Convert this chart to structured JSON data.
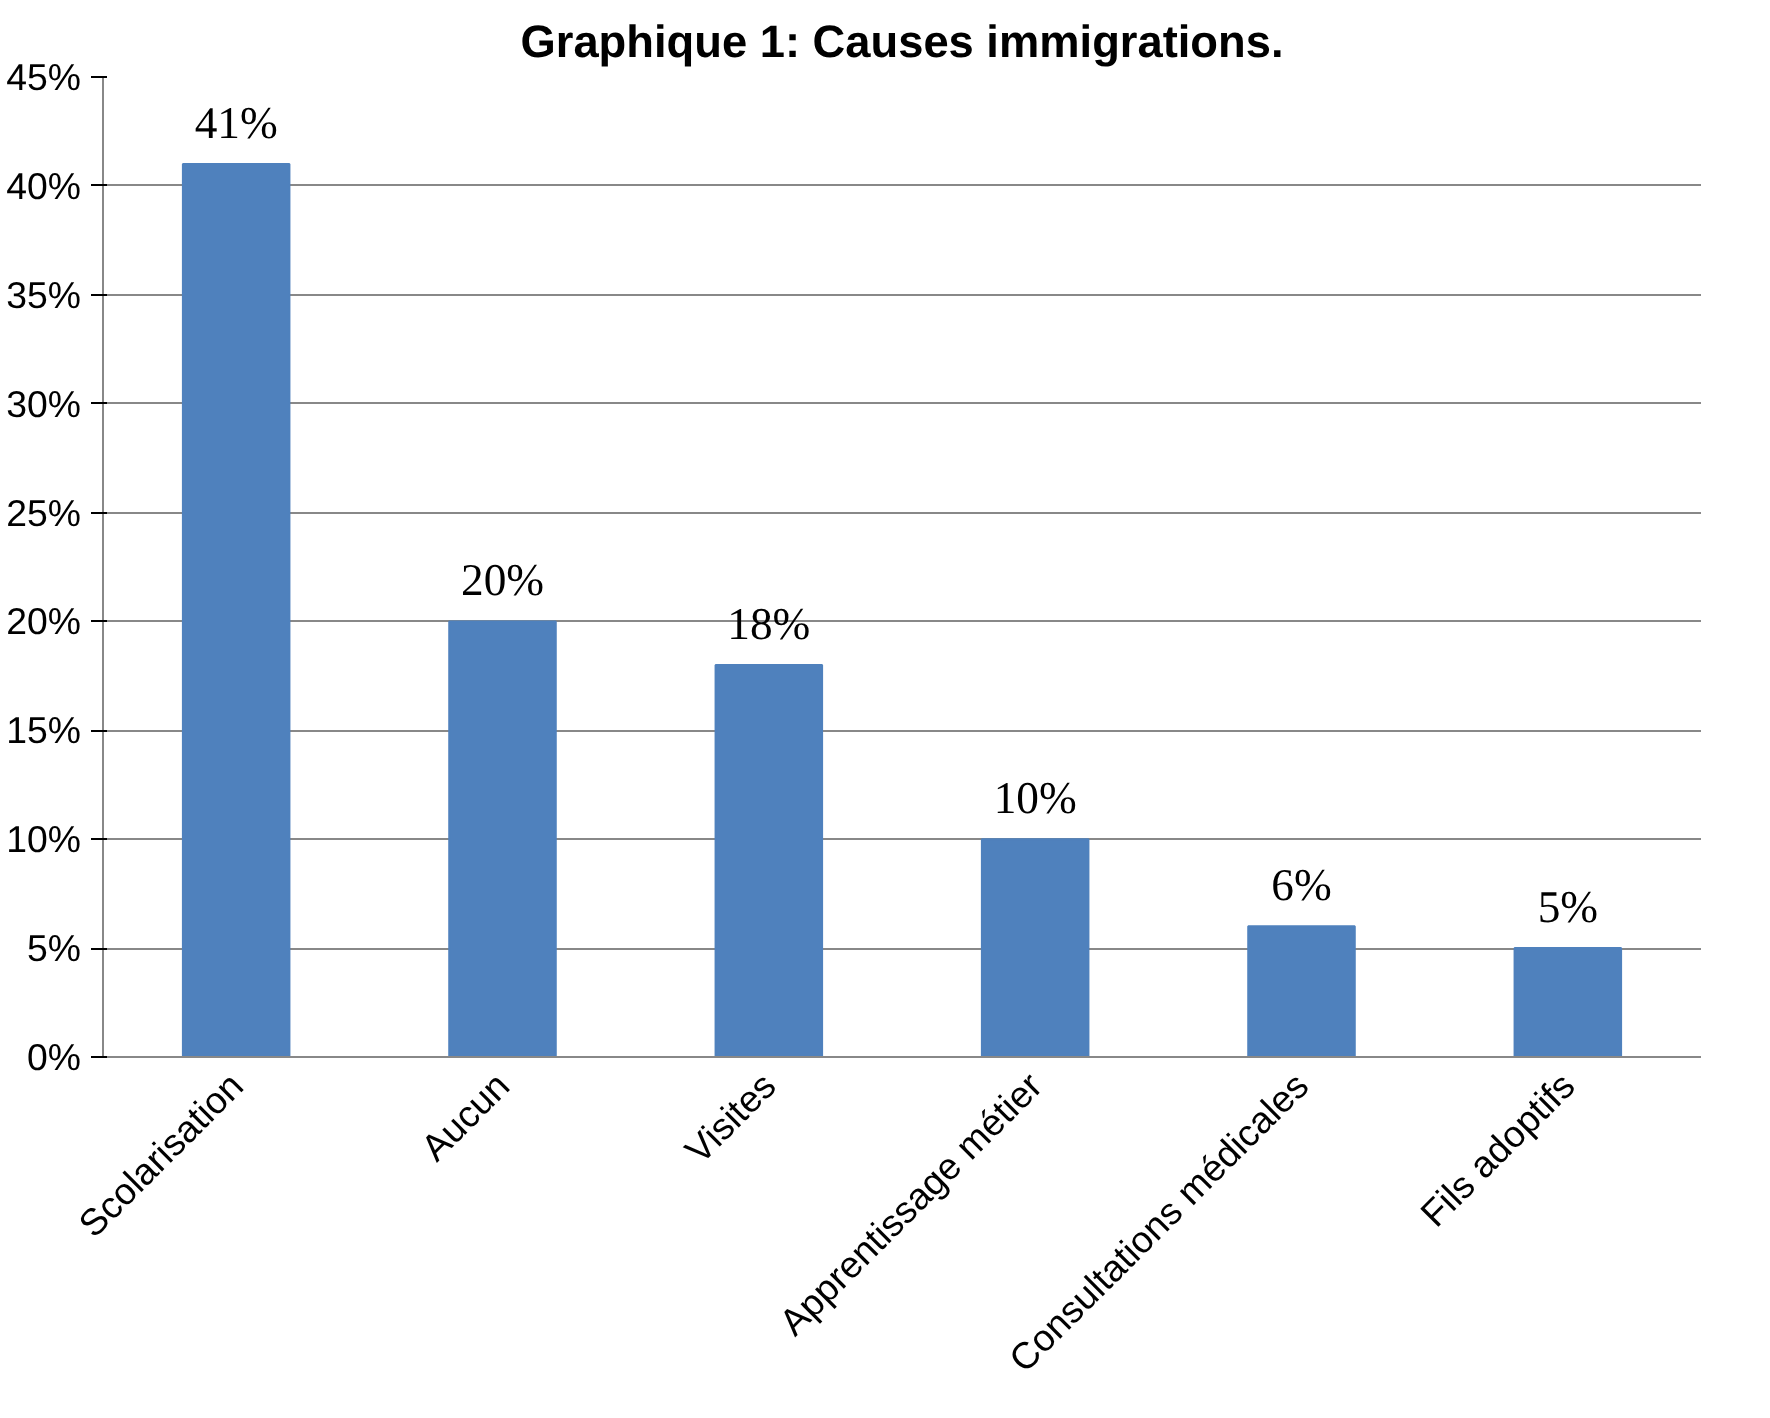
{
  "chart_data": {
    "type": "bar",
    "title": "Graphique 1: Causes immigrations.",
    "categories": [
      "Scolarisation",
      "Aucun",
      "Visites",
      "Apprentissage métier",
      "Consultations médicales",
      "Fils adoptifs"
    ],
    "values": [
      41,
      20,
      18,
      10,
      6,
      5
    ],
    "value_labels": [
      "41%",
      "20%",
      "18%",
      "10%",
      "6%",
      "5%"
    ],
    "color": "#4f81bd",
    "ylim": [
      0,
      45
    ],
    "yticks": [
      {
        "value": 0,
        "label": "0%"
      },
      {
        "value": 5,
        "label": "5%"
      },
      {
        "value": 10,
        "label": "10%"
      },
      {
        "value": 15,
        "label": "15%"
      },
      {
        "value": 20,
        "label": "20%"
      },
      {
        "value": 25,
        "label": "25%"
      },
      {
        "value": 30,
        "label": "30%"
      },
      {
        "value": 35,
        "label": "35%"
      },
      {
        "value": 40,
        "label": "40%"
      },
      {
        "value": 45,
        "label": "45%"
      }
    ],
    "grid": "y"
  }
}
